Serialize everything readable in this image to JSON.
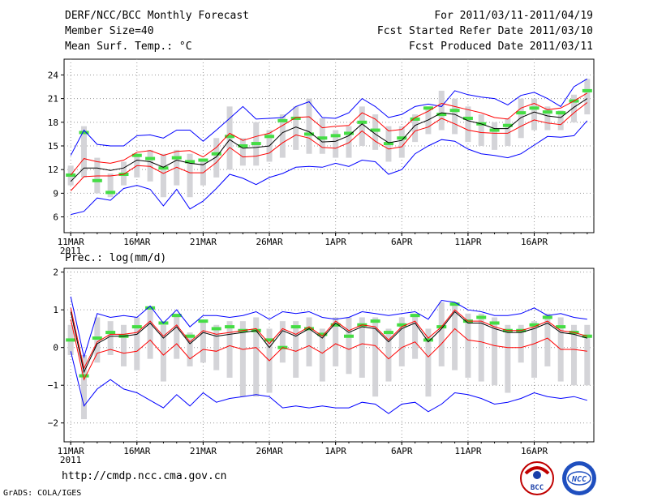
{
  "header": {
    "title": "DERF/NCC/BCC Monthly Forecast",
    "member_size": "Member Size=40",
    "variable": "Mean Surf. Temp.: °C",
    "period": "For 2011/03/11-2011/04/19",
    "started": "Fcst Started Refer Date 2011/03/10",
    "produced": "Fcst Produced Date 2011/03/11"
  },
  "footer": {
    "url": "http://cmdp.ncc.cma.gov.cn",
    "credit": "GrADS: COLA/IGES",
    "logos": [
      "BCC",
      "NCC"
    ]
  },
  "colors": {
    "envelope": "#0000ff",
    "spread": "#ff0000",
    "mean": "#000000",
    "box": "#d4d4d8",
    "marker": "#44dd44",
    "grid": "#999999"
  },
  "chart_data": [
    {
      "type": "line",
      "title": "Mean Surf. Temp.: °C",
      "xlabels": [
        "11MAR",
        "16MAR",
        "21MAR",
        "26MAR",
        "1APR",
        "6APR",
        "11APR",
        "16APR"
      ],
      "year_label": "2011",
      "ylim": [
        4,
        26
      ],
      "yticks": [
        6,
        9,
        12,
        15,
        18,
        21,
        24
      ],
      "days": 40,
      "series": [
        {
          "name": "max",
          "values": [
            13.8,
            17.0,
            15.2,
            15.0,
            15.0,
            16.3,
            16.4,
            16.0,
            17.0,
            17.0,
            15.6,
            17.0,
            18.5,
            20.0,
            18.4,
            18.5,
            18.6,
            20.0,
            20.6,
            18.6,
            18.5,
            19.2,
            21.0,
            20.0,
            18.6,
            19.0,
            20.0,
            20.3,
            20.0,
            22.0,
            21.5,
            21.2,
            21.0,
            20.2,
            21.4,
            21.8,
            21.0,
            20.0,
            22.5,
            23.5
          ]
        },
        {
          "name": "upper",
          "values": [
            11.3,
            13.4,
            13.0,
            12.8,
            13.2,
            14.2,
            14.4,
            13.8,
            14.3,
            14.4,
            13.6,
            14.8,
            16.6,
            15.7,
            16.2,
            16.6,
            17.6,
            18.6,
            18.7,
            17.3,
            17.5,
            17.6,
            19.2,
            18.4,
            16.9,
            17.1,
            18.6,
            19.4,
            20.4,
            20.0,
            19.6,
            19.2,
            18.6,
            18.4,
            19.8,
            20.4,
            19.6,
            19.8,
            20.7,
            21.7
          ]
        },
        {
          "name": "mean",
          "values": [
            10.5,
            12.2,
            12.2,
            11.9,
            12.2,
            13.2,
            13.0,
            12.3,
            13.2,
            12.8,
            12.6,
            13.6,
            15.8,
            14.7,
            14.8,
            15.0,
            16.7,
            17.4,
            16.8,
            15.5,
            15.6,
            16.3,
            17.8,
            16.5,
            15.4,
            15.7,
            17.6,
            18.3,
            19.2,
            19.0,
            18.2,
            17.8,
            17.2,
            17.2,
            18.6,
            19.3,
            18.8,
            18.6,
            19.9,
            21.0
          ]
        },
        {
          "name": "lower",
          "values": [
            9.3,
            11.1,
            11.2,
            11.2,
            11.4,
            12.5,
            12.4,
            11.5,
            12.3,
            11.6,
            11.6,
            12.9,
            14.8,
            13.6,
            13.7,
            14.1,
            15.4,
            16.4,
            16.0,
            14.8,
            14.7,
            15.4,
            16.9,
            15.6,
            14.6,
            14.9,
            16.9,
            17.4,
            18.5,
            17.8,
            17.0,
            16.7,
            16.6,
            16.6,
            17.5,
            18.3,
            17.9,
            17.7,
            19.2,
            20.5
          ]
        },
        {
          "name": "min",
          "values": [
            6.3,
            6.7,
            8.4,
            8.1,
            9.6,
            10.0,
            9.5,
            7.4,
            9.5,
            7.0,
            8.0,
            9.6,
            11.4,
            10.9,
            10.1,
            11.0,
            11.5,
            12.3,
            12.4,
            12.3,
            12.8,
            12.4,
            13.2,
            13.0,
            11.4,
            12.0,
            14.0,
            15.0,
            15.8,
            15.6,
            14.6,
            14.0,
            13.8,
            13.5,
            14.0,
            15.1,
            16.2,
            16.1,
            16.3,
            18.2
          ]
        },
        {
          "name": "box_top",
          "values": [
            12.5,
            17.5,
            13.5,
            11.5,
            13.0,
            14.0,
            14.5,
            14.0,
            14.5,
            14.0,
            13.0,
            16.0,
            20.0,
            16.0,
            18.0,
            17.0,
            19.0,
            20.0,
            21.0,
            18.5,
            17.0,
            17.5,
            20.0,
            19.0,
            17.5,
            17.5,
            19.0,
            20.0,
            22.0,
            21.0,
            20.0,
            19.0,
            18.0,
            18.5,
            21.0,
            21.0,
            20.0,
            19.5,
            21.5,
            23.5
          ]
        },
        {
          "name": "box_bottom",
          "values": [
            10.0,
            11.0,
            9.0,
            8.5,
            10.0,
            11.0,
            10.5,
            8.5,
            10.0,
            8.5,
            10.0,
            11.0,
            12.0,
            12.5,
            12.5,
            13.0,
            13.5,
            14.5,
            14.0,
            14.0,
            13.5,
            13.5,
            15.0,
            14.5,
            13.0,
            13.5,
            15.5,
            16.5,
            17.0,
            16.5,
            15.5,
            15.0,
            14.5,
            15.0,
            16.0,
            17.0,
            17.0,
            17.0,
            18.0,
            19.0
          ]
        },
        {
          "name": "observed_marker",
          "values": [
            11.3,
            16.7,
            10.6,
            9.1,
            11.4,
            13.8,
            13.4,
            12.2,
            13.5,
            13.0,
            13.2,
            14.0,
            16.2,
            15.0,
            15.3,
            16.2,
            18.2,
            18.5,
            16.5,
            16.0,
            16.3,
            16.6,
            18.0,
            17.0,
            15.3,
            16.0,
            18.4,
            19.8,
            19.0,
            19.5,
            18.5,
            17.8,
            17.0,
            17.6,
            19.2,
            19.8,
            19.3,
            19.2,
            20.7,
            22.0
          ]
        }
      ]
    },
    {
      "type": "line",
      "title": "Prec.: log(mm/d)",
      "xlabels": [
        "11MAR",
        "16MAR",
        "21MAR",
        "26MAR",
        "1APR",
        "6APR",
        "11APR",
        "16APR"
      ],
      "year_label": "2011",
      "ylim": [
        -2.5,
        2.1
      ],
      "yticks": [
        -2,
        -1,
        0,
        1,
        2
      ],
      "days": 40,
      "series": [
        {
          "name": "max",
          "values": [
            1.35,
            -0.25,
            0.9,
            0.8,
            0.85,
            0.8,
            1.1,
            0.65,
            1.0,
            0.55,
            0.85,
            0.85,
            0.8,
            0.85,
            0.95,
            0.75,
            0.95,
            0.9,
            0.95,
            0.8,
            0.75,
            0.8,
            0.95,
            0.9,
            0.85,
            0.9,
            0.95,
            0.75,
            1.25,
            1.2,
            1.0,
            0.95,
            0.85,
            0.85,
            0.9,
            1.05,
            0.85,
            0.9,
            0.8,
            0.75
          ]
        },
        {
          "name": "upper",
          "values": [
            1.05,
            -0.55,
            0.15,
            0.35,
            0.35,
            0.4,
            0.7,
            0.3,
            0.6,
            0.15,
            0.45,
            0.35,
            0.4,
            0.45,
            0.5,
            0.1,
            0.5,
            0.35,
            0.55,
            0.3,
            0.7,
            0.45,
            0.6,
            0.55,
            0.2,
            0.55,
            0.7,
            0.25,
            0.55,
            1.0,
            0.7,
            0.7,
            0.55,
            0.45,
            0.45,
            0.55,
            0.7,
            0.45,
            0.4,
            0.3
          ]
        },
        {
          "name": "mean",
          "values": [
            0.95,
            -0.65,
            0.1,
            0.3,
            0.3,
            0.35,
            0.65,
            0.25,
            0.55,
            0.1,
            0.4,
            0.3,
            0.35,
            0.4,
            0.45,
            0.0,
            0.45,
            0.3,
            0.5,
            0.25,
            0.65,
            0.4,
            0.55,
            0.5,
            0.15,
            0.5,
            0.65,
            0.15,
            0.5,
            0.95,
            0.65,
            0.65,
            0.5,
            0.4,
            0.4,
            0.5,
            0.65,
            0.4,
            0.35,
            0.25
          ]
        },
        {
          "name": "lower",
          "values": [
            0.75,
            -0.85,
            -0.15,
            -0.05,
            -0.15,
            -0.1,
            0.2,
            -0.2,
            0.1,
            -0.3,
            -0.05,
            -0.1,
            0.05,
            -0.05,
            0.0,
            -0.35,
            0.0,
            -0.1,
            0.05,
            -0.15,
            0.1,
            -0.05,
            0.1,
            0.05,
            -0.3,
            0.0,
            0.15,
            -0.25,
            0.1,
            0.5,
            0.2,
            0.15,
            0.05,
            0.0,
            0.0,
            0.1,
            0.25,
            -0.05,
            -0.05,
            -0.1
          ]
        },
        {
          "name": "min",
          "values": [
            -0.1,
            -1.55,
            -1.1,
            -0.85,
            -1.1,
            -1.2,
            -1.4,
            -1.6,
            -1.25,
            -1.55,
            -1.2,
            -1.45,
            -1.35,
            -1.3,
            -1.25,
            -1.3,
            -1.6,
            -1.55,
            -1.6,
            -1.55,
            -1.6,
            -1.6,
            -1.45,
            -1.5,
            -1.75,
            -1.5,
            -1.45,
            -1.7,
            -1.5,
            -1.2,
            -1.25,
            -1.35,
            -1.5,
            -1.45,
            -1.35,
            -1.2,
            -1.3,
            -1.35,
            -1.3,
            -1.4
          ]
        },
        {
          "name": "box_top",
          "values": [
            0.6,
            -0.2,
            0.8,
            0.7,
            0.6,
            0.8,
            1.1,
            0.6,
            0.9,
            0.4,
            0.7,
            0.6,
            0.7,
            0.7,
            0.8,
            0.5,
            0.7,
            0.7,
            0.8,
            0.5,
            0.8,
            0.8,
            0.8,
            0.8,
            0.5,
            0.8,
            0.9,
            0.5,
            1.2,
            1.2,
            0.9,
            0.9,
            0.8,
            0.6,
            0.6,
            0.7,
            0.9,
            0.8,
            0.6,
            0.6
          ]
        },
        {
          "name": "box_bottom",
          "values": [
            -0.2,
            -1.9,
            -0.4,
            -0.2,
            -0.5,
            -0.6,
            -0.3,
            -0.9,
            -0.3,
            -0.5,
            -0.4,
            -0.6,
            -0.8,
            -1.3,
            -1.3,
            -1.2,
            -0.4,
            -0.8,
            -0.5,
            -0.9,
            -0.5,
            -0.7,
            -0.8,
            -1.3,
            -0.9,
            -0.5,
            -0.3,
            -1.3,
            -0.5,
            -0.6,
            -0.8,
            -0.9,
            -1.0,
            -1.2,
            -0.4,
            -0.8,
            -0.5,
            -0.9,
            -1.0,
            -1.0
          ]
        },
        {
          "name": "observed_marker",
          "values": [
            0.2,
            -0.75,
            0.25,
            0.4,
            0.3,
            0.55,
            1.05,
            0.65,
            0.85,
            0.3,
            0.7,
            0.5,
            0.55,
            0.45,
            0.45,
            0.2,
            0.0,
            0.55,
            0.5,
            0.35,
            0.6,
            0.3,
            0.6,
            0.7,
            0.4,
            0.6,
            0.85,
            0.2,
            0.55,
            1.15,
            0.7,
            0.8,
            0.65,
            0.45,
            0.45,
            0.6,
            0.8,
            0.55,
            0.4,
            0.3
          ]
        }
      ]
    }
  ]
}
